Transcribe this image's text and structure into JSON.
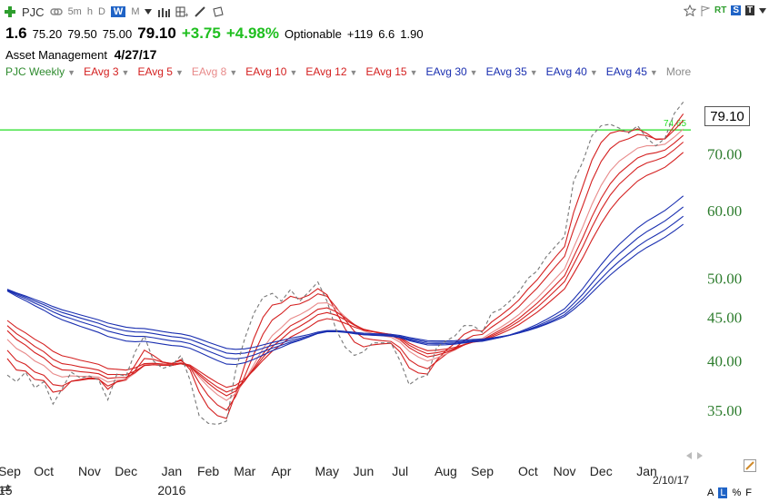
{
  "toolbar": {
    "symbol": "PJC",
    "intervals": [
      "5m",
      "h",
      "D",
      "W",
      "M"
    ],
    "active_interval": "W",
    "right_badges": [
      "RT",
      "S",
      "T"
    ]
  },
  "quote": {
    "change_short": "1.6",
    "open": "75.20",
    "high": "79.50",
    "low": "75.00",
    "last": "79.10",
    "change": "+3.75",
    "change_pct": "+4.98%",
    "optionable": "Optionable",
    "v1": "+119",
    "v2": "6.6",
    "v3": "1.90"
  },
  "info": {
    "industry": "Asset Management",
    "date": "4/27/17"
  },
  "studies": [
    {
      "label": "PJC Weekly",
      "color": "#2e8b2e"
    },
    {
      "label": "EAvg 3",
      "color": "#d42020"
    },
    {
      "label": "EAvg 5",
      "color": "#d42020"
    },
    {
      "label": "EAvg 8",
      "color": "#e88a8a"
    },
    {
      "label": "EAvg 10",
      "color": "#d42020"
    },
    {
      "label": "EAvg 12",
      "color": "#d42020"
    },
    {
      "label": "EAvg 15",
      "color": "#d42020"
    },
    {
      "label": "EAvg 30",
      "color": "#1a2fb0"
    },
    {
      "label": "EAvg 35",
      "color": "#1a2fb0"
    },
    {
      "label": "EAvg 40",
      "color": "#1a2fb0"
    },
    {
      "label": "EAvg 45",
      "color": "#1a2fb0"
    },
    {
      "label": "More",
      "color": "#8a8a8a"
    }
  ],
  "price_box": "79.10",
  "bottom": {
    "year_label": "2016",
    "left_label_1": "Sep",
    "left_label_2": "15",
    "end_date": "2/10/17",
    "icons": [
      "A",
      "L",
      "%",
      "F"
    ]
  },
  "chart_data": {
    "type": "line",
    "y_scale": "log",
    "ylim": [
      31.5,
      84
    ],
    "y_ticks": [
      35,
      40,
      45,
      50,
      60,
      70
    ],
    "y_tick_labels": [
      "35.00",
      "40.00",
      "45.00",
      "50.00",
      "60.00",
      "70.00"
    ],
    "x_ticks": [
      "Oct",
      "Nov",
      "Dec",
      "Jan",
      "Feb",
      "Mar",
      "Apr",
      "May",
      "Jun",
      "Jul",
      "Aug",
      "Sep",
      "Oct",
      "Nov",
      "Dec",
      "Jan"
    ],
    "x_tick_weeks": [
      4,
      9,
      13,
      18,
      22,
      26,
      30,
      35,
      39,
      43,
      48,
      52,
      57,
      61,
      65,
      70
    ],
    "horizontal_line": {
      "value": 74.65,
      "label": "74.65",
      "color": "#22dd22"
    },
    "price": [
      38.5,
      37.8,
      38.8,
      37.2,
      37.8,
      35.6,
      37.1,
      38.8,
      38.2,
      38.4,
      38.0,
      36.0,
      38.6,
      38.4,
      41.0,
      42.8,
      40.0,
      39.2,
      39.5,
      40.6,
      38.0,
      34.5,
      33.8,
      33.7,
      34.0,
      39.0,
      42.5,
      45.5,
      47.5,
      48.0,
      47.0,
      48.5,
      47.0,
      48.2,
      49.5,
      47.0,
      43.5,
      41.5,
      40.6,
      41.0,
      42.0,
      42.0,
      42.0,
      40.0,
      37.5,
      38.2,
      38.5,
      41.5,
      42.2,
      42.8,
      44.0,
      44.0,
      43.2,
      45.5,
      46.0,
      47.0,
      48.2,
      50.0,
      51.0,
      53.0,
      54.5,
      56.0,
      65.0,
      68.5,
      73.5,
      75.5,
      75.8,
      75.0,
      74.0,
      75.5,
      73.0,
      71.5,
      73.0,
      78.0,
      80.5
    ],
    "series": [
      {
        "name": "EAvg 3",
        "color": "#d42020"
      },
      {
        "name": "EAvg 5",
        "color": "#d42020"
      },
      {
        "name": "EAvg 8",
        "color": "#e88a8a"
      },
      {
        "name": "EAvg 10",
        "color": "#d42020"
      },
      {
        "name": "EAvg 12",
        "color": "#d42020"
      },
      {
        "name": "EAvg 15",
        "color": "#d42020"
      },
      {
        "name": "EAvg 30",
        "color": "#1a2fb0"
      },
      {
        "name": "EAvg 35",
        "color": "#1a2fb0"
      },
      {
        "name": "EAvg 40",
        "color": "#1a2fb0"
      },
      {
        "name": "EAvg 45",
        "color": "#1a2fb0"
      }
    ],
    "ema_seeds": [
      42.0,
      42.5,
      43.5,
      44.5,
      45.0,
      45.5,
      49.0,
      49.0,
      49.0,
      49.0
    ]
  }
}
